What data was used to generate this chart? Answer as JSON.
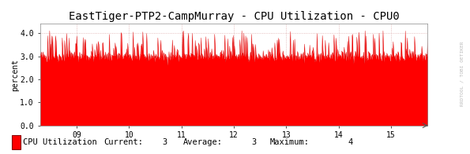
{
  "title": "EastTiger-PTP2-CampMurray - CPU Utilization - CPU0",
  "ylabel": "percent",
  "watermark": "RRDTOOL / TOBI OETIKER",
  "ylim": [
    0.0,
    4.4
  ],
  "yticks": [
    0.0,
    1.0,
    2.0,
    3.0,
    4.0
  ],
  "ytick_labels": [
    "0.0",
    "1.0",
    "2.0",
    "3.0",
    "4.0"
  ],
  "xlim": [
    8.3,
    15.7
  ],
  "xtick_labels": [
    "09",
    "10",
    "11",
    "12",
    "13",
    "14",
    "15"
  ],
  "xtick_positions": [
    9,
    10,
    11,
    12,
    13,
    14,
    15
  ],
  "fill_color": "#FF0000",
  "line_color": "#DD0000",
  "bg_color": "#FFFFFF",
  "plot_bg_color": "#FFFFFF",
  "grid_color": "#DDAAAA",
  "legend_label": "CPU Utilization",
  "legend_current": "3",
  "legend_average": "3",
  "legend_maximum": "4",
  "title_fontsize": 10,
  "axis_fontsize": 7,
  "legend_fontsize": 7.5,
  "base_value": 3.0,
  "num_points": 800,
  "seed": 42
}
